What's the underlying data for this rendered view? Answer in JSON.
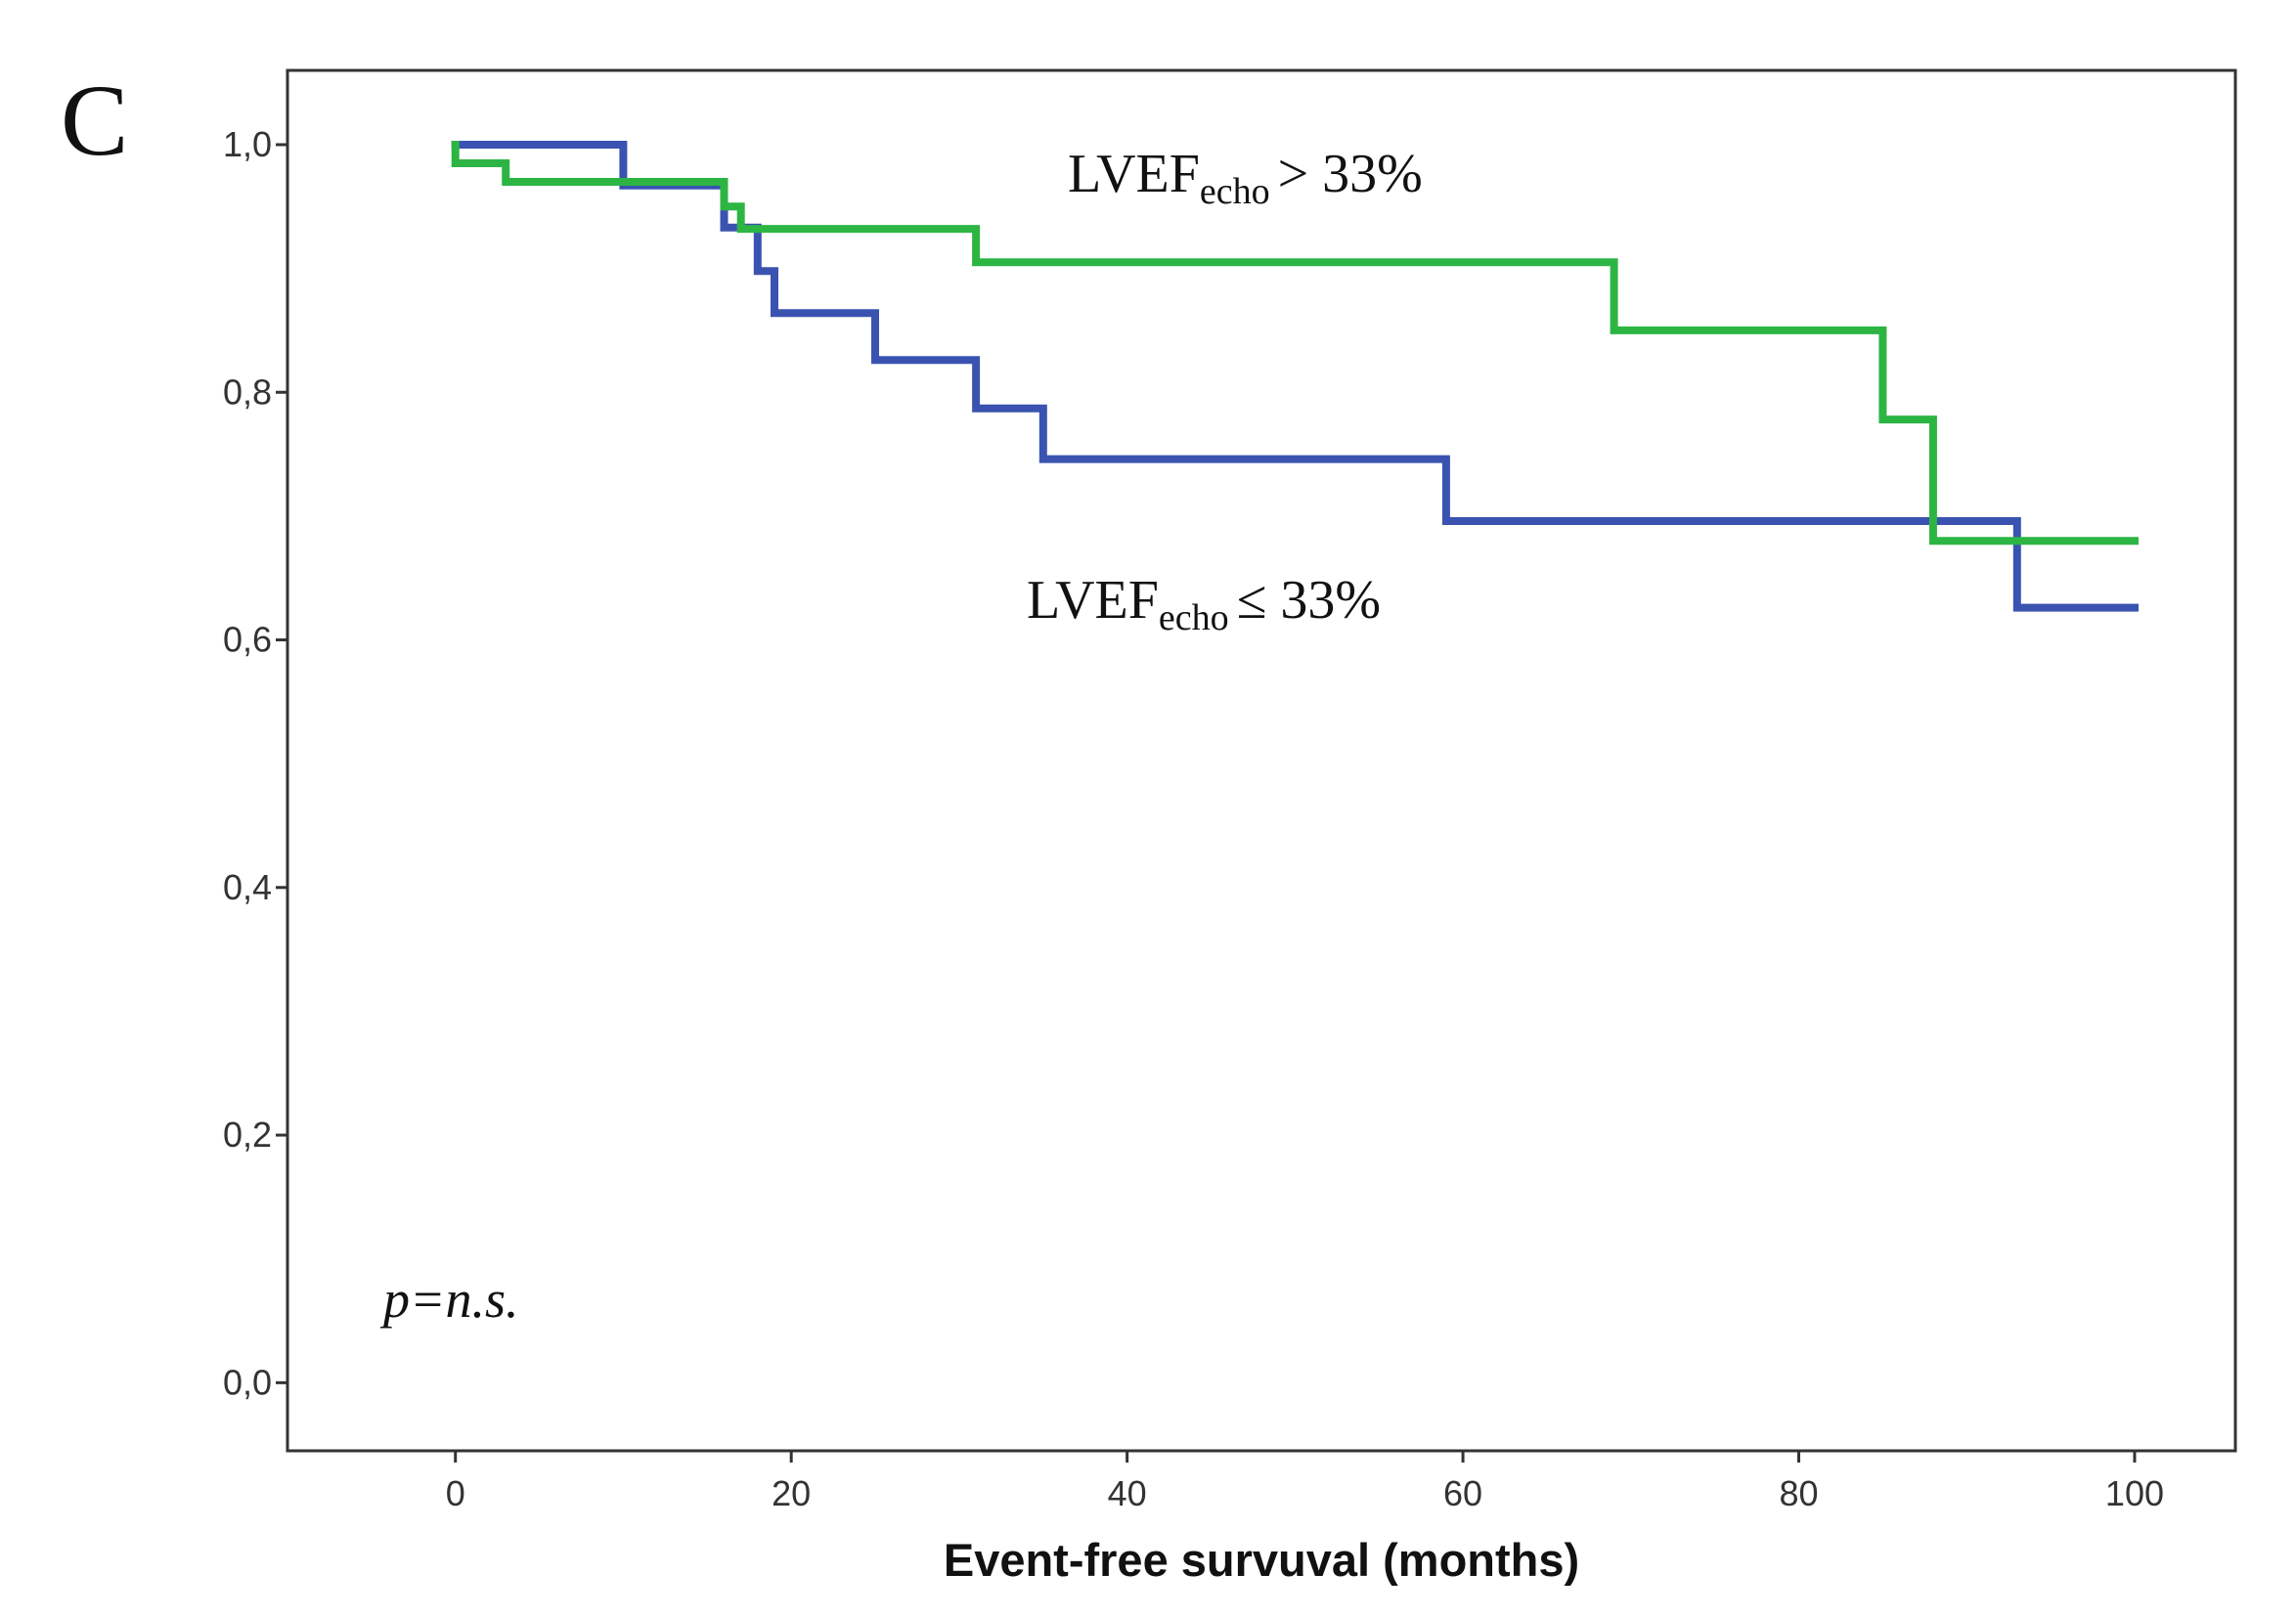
{
  "panel_letter": "C",
  "chart_data": {
    "type": "line",
    "title": "",
    "xlabel": "Event-free survuval (months)",
    "ylabel": "",
    "xlim": [
      -10,
      106
    ],
    "ylim": [
      -0.055,
      1.06
    ],
    "x_ticks": [
      0,
      20,
      40,
      60,
      80,
      100
    ],
    "x_tick_labels": [
      "0",
      "20",
      "40",
      "60",
      "80",
      "100"
    ],
    "y_ticks": [
      0,
      0.2,
      0.4,
      0.6,
      0.8,
      1.0
    ],
    "y_tick_labels": [
      "0,0",
      "0,2",
      "0,4",
      "0,6",
      "0,8",
      "1,0"
    ],
    "grid": false,
    "annotation": "p=n.s.",
    "series": [
      {
        "name": "LVEF echo > 33%",
        "label_main": "LVEF",
        "label_sub": "echo",
        "label_rel": "> 33%",
        "color": "#2db544",
        "step": true,
        "points": [
          [
            0,
            1.0
          ],
          [
            0,
            0.985
          ],
          [
            3,
            0.985
          ],
          [
            3,
            0.97
          ],
          [
            16,
            0.97
          ],
          [
            16,
            0.95
          ],
          [
            17,
            0.95
          ],
          [
            17,
            0.932
          ],
          [
            31,
            0.932
          ],
          [
            31,
            0.905
          ],
          [
            69,
            0.905
          ],
          [
            69,
            0.85
          ],
          [
            85,
            0.85
          ],
          [
            85,
            0.778
          ],
          [
            88,
            0.778
          ],
          [
            88,
            0.68
          ],
          [
            100,
            0.68
          ]
        ]
      },
      {
        "name": "LVEF echo ≤ 33%",
        "label_main": "LVEF",
        "label_sub": "echo",
        "label_rel": "≤ 33%",
        "color": "#3a53b0",
        "step": true,
        "points": [
          [
            0,
            1.0
          ],
          [
            10,
            1.0
          ],
          [
            10,
            0.967
          ],
          [
            16,
            0.967
          ],
          [
            16,
            0.933
          ],
          [
            18,
            0.933
          ],
          [
            18,
            0.898
          ],
          [
            19,
            0.898
          ],
          [
            19,
            0.864
          ],
          [
            25,
            0.864
          ],
          [
            25,
            0.826
          ],
          [
            31,
            0.826
          ],
          [
            31,
            0.787
          ],
          [
            35,
            0.787
          ],
          [
            35,
            0.746
          ],
          [
            59,
            0.746
          ],
          [
            59,
            0.696
          ],
          [
            93,
            0.696
          ],
          [
            93,
            0.626
          ],
          [
            100,
            0.626
          ]
        ]
      }
    ]
  }
}
